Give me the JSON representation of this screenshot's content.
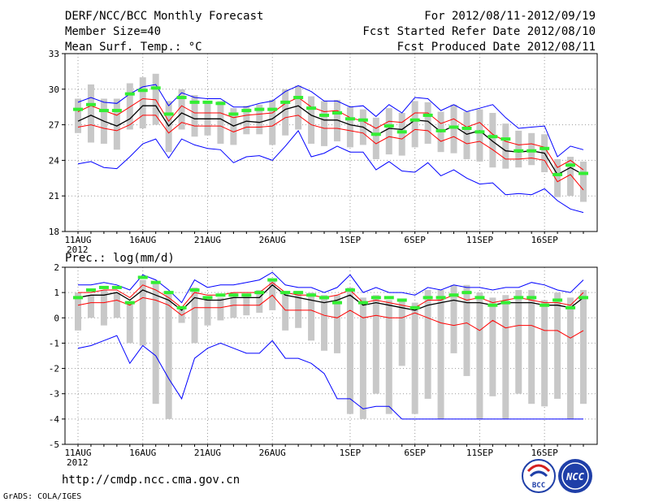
{
  "header": {
    "left": [
      "DERF/NCC/BCC Monthly Forecast",
      "Member Size=40",
      "Mean Surf. Temp.: °C"
    ],
    "right": [
      "For 2012/08/11-2012/09/19",
      "Fcst Started Refer Date 2012/08/10",
      "Fcst Produced Date 2012/08/11"
    ]
  },
  "footer": {
    "url": "http://cmdp.ncc.cma.gov.cn",
    "credit": "GrADS: COLA/IGES"
  },
  "logos": {
    "bcc": "BCC",
    "ncc": "NCC"
  },
  "colors": {
    "envelope": "#0000ff",
    "spread": "#ff0000",
    "mean": "#000000",
    "median": "#33ee33",
    "box": "#c8c8c8"
  },
  "chart_data": [
    {
      "type": "box-plot-with-lines",
      "title": "Mean Surf. Temp.: °C",
      "x": [
        "8/11",
        "8/12",
        "8/13",
        "8/14",
        "8/15",
        "8/16",
        "8/17",
        "8/18",
        "8/19",
        "8/20",
        "8/21",
        "8/22",
        "8/23",
        "8/24",
        "8/25",
        "8/26",
        "8/27",
        "8/28",
        "8/29",
        "8/30",
        "8/31",
        "9/1",
        "9/2",
        "9/3",
        "9/4",
        "9/5",
        "9/6",
        "9/7",
        "9/8",
        "9/9",
        "9/10",
        "9/11",
        "9/12",
        "9/13",
        "9/14",
        "9/15",
        "9/16",
        "9/17",
        "9/18",
        "9/19"
      ],
      "xticks": [
        {
          "label": "11AUG",
          "index": 0,
          "year": "2012"
        },
        {
          "label": "16AUG",
          "index": 5
        },
        {
          "label": "21AUG",
          "index": 10
        },
        {
          "label": "26AUG",
          "index": 15
        },
        {
          "label": "1SEP",
          "index": 21
        },
        {
          "label": "6SEP",
          "index": 26
        },
        {
          "label": "11SEP",
          "index": 31
        },
        {
          "label": "16SEP",
          "index": 36
        }
      ],
      "ylim": [
        18,
        33
      ],
      "yticks": [
        18,
        21,
        24,
        27,
        30,
        33
      ],
      "series": [
        {
          "name": "max",
          "color": "#0000ff",
          "values": [
            28.9,
            29.3,
            28.9,
            28.8,
            29.6,
            30.2,
            30.4,
            28.6,
            29.7,
            29.3,
            29.2,
            29.2,
            28.5,
            28.5,
            28.8,
            29.0,
            29.8,
            30.3,
            29.8,
            29.0,
            29.0,
            28.5,
            28.6,
            27.7,
            28.7,
            28.0,
            29.3,
            29.2,
            28.2,
            28.7,
            28.1,
            28.4,
            28.7,
            27.6,
            26.7,
            26.8,
            26.9,
            24.3,
            25.2,
            24.9
          ]
        },
        {
          "name": "upper",
          "color": "#ff0000",
          "values": [
            28.1,
            28.6,
            28.2,
            27.8,
            28.5,
            29.2,
            29.1,
            27.3,
            28.6,
            28.0,
            28.0,
            28.0,
            27.6,
            27.8,
            27.9,
            28.0,
            28.8,
            29.3,
            28.5,
            28.1,
            28.2,
            27.6,
            27.3,
            26.7,
            27.3,
            27.2,
            28.0,
            28.0,
            27.1,
            27.5,
            26.8,
            27.2,
            26.2,
            25.6,
            25.3,
            25.4,
            25.1,
            23.4,
            24.0,
            23.2
          ]
        },
        {
          "name": "mean",
          "color": "#000000",
          "values": [
            27.3,
            27.8,
            27.3,
            26.9,
            27.5,
            28.6,
            28.6,
            26.9,
            28.0,
            27.5,
            27.5,
            27.5,
            26.9,
            27.3,
            27.2,
            27.5,
            28.3,
            28.6,
            27.8,
            27.4,
            27.4,
            27.0,
            26.8,
            26.1,
            26.7,
            26.6,
            27.4,
            27.3,
            26.4,
            26.9,
            26.2,
            26.5,
            25.6,
            24.8,
            24.7,
            24.8,
            24.6,
            22.8,
            23.4,
            22.8
          ]
        },
        {
          "name": "lower",
          "color": "#ff0000",
          "values": [
            26.8,
            27.0,
            26.7,
            26.5,
            27.0,
            27.8,
            27.8,
            26.3,
            27.2,
            26.9,
            26.9,
            26.9,
            26.4,
            26.8,
            26.8,
            26.9,
            27.6,
            27.8,
            27.0,
            26.7,
            26.7,
            26.5,
            26.3,
            25.4,
            26.0,
            25.8,
            26.6,
            26.5,
            25.6,
            26.0,
            25.4,
            25.6,
            24.9,
            24.1,
            24.1,
            24.2,
            24.0,
            22.2,
            22.8,
            21.5
          ]
        },
        {
          "name": "min",
          "color": "#0000ff",
          "values": [
            23.7,
            23.9,
            23.4,
            23.3,
            24.3,
            25.4,
            25.8,
            24.2,
            25.8,
            25.3,
            25.0,
            24.9,
            23.8,
            24.3,
            24.4,
            24.0,
            25.2,
            26.5,
            24.3,
            24.6,
            25.2,
            24.7,
            24.7,
            23.2,
            23.9,
            23.1,
            23.0,
            23.8,
            22.7,
            23.2,
            22.5,
            22.0,
            22.1,
            21.1,
            21.2,
            21.1,
            21.6,
            20.6,
            19.9,
            19.6
          ]
        },
        {
          "name": "median",
          "color": "#33ee33",
          "values": [
            28.3,
            28.7,
            28.2,
            28.2,
            29.6,
            29.9,
            30.1,
            27.9,
            29.3,
            28.9,
            28.9,
            28.8,
            27.9,
            28.2,
            28.3,
            28.3,
            28.9,
            29.3,
            28.4,
            27.8,
            28.0,
            27.5,
            27.4,
            26.2,
            26.9,
            26.4,
            27.4,
            27.8,
            26.5,
            26.8,
            26.7,
            26.4,
            26.0,
            25.8,
            24.8,
            24.8,
            25.0,
            22.8,
            23.6,
            22.9
          ]
        },
        {
          "name": "box_top",
          "color": "#c8c8c8",
          "values": [
            29.2,
            30.4,
            29.2,
            29.2,
            30.5,
            31.0,
            31.3,
            29.0,
            30.0,
            29.5,
            29.0,
            29.0,
            28.4,
            28.6,
            28.7,
            29.1,
            30.0,
            30.3,
            29.4,
            29.0,
            29.1,
            28.5,
            28.3,
            27.6,
            28.4,
            28.0,
            29.0,
            28.9,
            28.1,
            28.7,
            28.1,
            28.3,
            28.0,
            27.1,
            26.5,
            26.3,
            26.2,
            24.1,
            24.3,
            23.9
          ]
        },
        {
          "name": "box_bottom",
          "color": "#c8c8c8",
          "values": [
            26.3,
            25.5,
            25.4,
            24.9,
            26.6,
            26.7,
            27.0,
            24.7,
            26.6,
            26.0,
            26.1,
            25.4,
            25.3,
            26.2,
            26.2,
            25.3,
            26.1,
            26.6,
            25.4,
            25.2,
            25.6,
            25.1,
            25.3,
            24.1,
            24.5,
            24.4,
            25.1,
            25.4,
            24.7,
            24.6,
            24.1,
            23.9,
            23.4,
            23.3,
            23.4,
            23.6,
            23.0,
            20.9,
            21.0,
            20.5
          ]
        }
      ]
    },
    {
      "type": "box-plot-with-lines",
      "title": "Prec.: log(mm/d)",
      "x": [
        "8/11",
        "8/12",
        "8/13",
        "8/14",
        "8/15",
        "8/16",
        "8/17",
        "8/18",
        "8/19",
        "8/20",
        "8/21",
        "8/22",
        "8/23",
        "8/24",
        "8/25",
        "8/26",
        "8/27",
        "8/28",
        "8/29",
        "8/30",
        "8/31",
        "9/1",
        "9/2",
        "9/3",
        "9/4",
        "9/5",
        "9/6",
        "9/7",
        "9/8",
        "9/9",
        "9/10",
        "9/11",
        "9/12",
        "9/13",
        "9/14",
        "9/15",
        "9/16",
        "9/17",
        "9/18",
        "9/19"
      ],
      "xticks": [
        {
          "label": "11AUG",
          "index": 0,
          "year": "2012"
        },
        {
          "label": "16AUG",
          "index": 5
        },
        {
          "label": "21AUG",
          "index": 10
        },
        {
          "label": "26AUG",
          "index": 15
        },
        {
          "label": "1SEP",
          "index": 21
        },
        {
          "label": "6SEP",
          "index": 26
        },
        {
          "label": "11SEP",
          "index": 31
        },
        {
          "label": "16SEP",
          "index": 36
        }
      ],
      "ylim": [
        -5,
        2
      ],
      "yticks": [
        -5,
        -4,
        -3,
        -2,
        -1,
        0,
        1,
        2
      ],
      "series": [
        {
          "name": "max",
          "color": "#0000ff",
          "values": [
            1.3,
            1.3,
            1.4,
            1.3,
            1.1,
            1.7,
            1.5,
            1.1,
            0.6,
            1.5,
            1.2,
            1.3,
            1.3,
            1.4,
            1.5,
            1.8,
            1.3,
            1.2,
            1.2,
            1.0,
            1.2,
            1.7,
            1.0,
            1.2,
            1.0,
            1.0,
            0.9,
            1.2,
            1.1,
            1.3,
            1.2,
            1.2,
            1.1,
            1.2,
            1.2,
            1.4,
            1.3,
            1.1,
            1.0,
            1.5
          ]
        },
        {
          "name": "upper",
          "color": "#ff0000",
          "values": [
            1.0,
            1.0,
            1.1,
            1.1,
            0.8,
            1.3,
            1.1,
            0.8,
            0.4,
            1.0,
            0.9,
            0.9,
            1.0,
            1.0,
            1.0,
            1.4,
            1.0,
            0.9,
            0.9,
            0.8,
            0.9,
            1.1,
            0.6,
            0.7,
            0.6,
            0.5,
            0.4,
            0.7,
            0.7,
            0.9,
            0.7,
            0.8,
            0.6,
            0.7,
            0.8,
            0.7,
            0.6,
            0.6,
            0.5,
            1.0
          ]
        },
        {
          "name": "mean",
          "color": "#000000",
          "values": [
            0.8,
            0.9,
            0.9,
            1.0,
            0.7,
            1.1,
            0.9,
            0.7,
            0.3,
            0.8,
            0.7,
            0.7,
            0.8,
            0.8,
            0.8,
            1.3,
            0.9,
            0.8,
            0.7,
            0.6,
            0.7,
            0.9,
            0.5,
            0.6,
            0.5,
            0.4,
            0.3,
            0.5,
            0.6,
            0.7,
            0.6,
            0.6,
            0.5,
            0.6,
            0.6,
            0.6,
            0.5,
            0.5,
            0.4,
            0.8
          ]
        },
        {
          "name": "lower",
          "color": "#ff0000",
          "values": [
            0.5,
            0.6,
            0.6,
            0.7,
            0.5,
            0.8,
            0.7,
            0.5,
            0.1,
            0.4,
            0.4,
            0.4,
            0.5,
            0.5,
            0.5,
            0.9,
            0.3,
            0.3,
            0.3,
            0.1,
            0.0,
            0.3,
            0.0,
            0.1,
            0.0,
            0.0,
            0.2,
            0.0,
            -0.2,
            -0.3,
            -0.2,
            -0.5,
            -0.1,
            -0.4,
            -0.3,
            -0.3,
            -0.5,
            -0.5,
            -0.8,
            -0.5
          ]
        },
        {
          "name": "min",
          "color": "#0000ff",
          "values": [
            -1.2,
            -1.1,
            -0.9,
            -0.7,
            -1.8,
            -1.1,
            -1.5,
            -2.4,
            -3.2,
            -1.6,
            -1.2,
            -1.0,
            -1.2,
            -1.4,
            -1.4,
            -0.9,
            -1.6,
            -1.6,
            -1.8,
            -2.2,
            -3.2,
            -3.2,
            -3.6,
            -3.5,
            -3.5,
            -4.0,
            -4.0,
            -4.0,
            -4.0,
            -4.0,
            -4.0,
            -4.0,
            -4.0,
            -4.0,
            -4.0,
            -4.0,
            -4.0,
            -4.0,
            -4.0,
            -4.0
          ]
        },
        {
          "name": "median",
          "color": "#33ee33",
          "values": [
            0.8,
            1.1,
            1.2,
            1.2,
            0.6,
            1.6,
            1.4,
            1.0,
            0.4,
            1.1,
            0.8,
            0.9,
            0.9,
            0.9,
            1.0,
            1.5,
            1.0,
            1.0,
            0.9,
            0.8,
            0.6,
            1.1,
            0.6,
            0.8,
            0.8,
            0.7,
            0.4,
            0.8,
            0.8,
            0.9,
            1.0,
            0.8,
            0.5,
            0.6,
            0.8,
            0.8,
            0.5,
            0.7,
            0.4,
            0.8
          ]
        },
        {
          "name": "box_top",
          "color": "#c8c8c8",
          "values": [
            1.0,
            0.9,
            1.1,
            1.0,
            0.6,
            1.5,
            1.4,
            1.0,
            0.4,
            1.2,
            0.8,
            0.8,
            1.0,
            0.9,
            1.1,
            1.5,
            1.0,
            1.0,
            1.0,
            0.9,
            0.9,
            1.2,
            0.8,
            0.9,
            0.7,
            0.7,
            0.6,
            1.1,
            1.1,
            1.3,
            1.3,
            1.0,
            0.8,
            0.9,
            1.1,
            1.1,
            0.7,
            1.0,
            0.8,
            1.1
          ]
        },
        {
          "name": "box_bottom",
          "color": "#c8c8c8",
          "values": [
            -0.5,
            0.0,
            -0.3,
            0.0,
            -1.0,
            -1.1,
            -3.4,
            -4.0,
            -0.2,
            -1.0,
            -0.3,
            -0.1,
            0.0,
            0.1,
            0.2,
            0.3,
            -0.5,
            -0.4,
            -0.9,
            -1.3,
            -1.4,
            -3.8,
            -4.0,
            -3.0,
            -3.8,
            -1.9,
            -3.8,
            -3.2,
            -4.0,
            -1.4,
            -2.3,
            -4.0,
            -3.1,
            -4.0,
            -3.0,
            -3.4,
            -3.5,
            -3.2,
            -4.0,
            -3.4
          ]
        }
      ]
    }
  ]
}
